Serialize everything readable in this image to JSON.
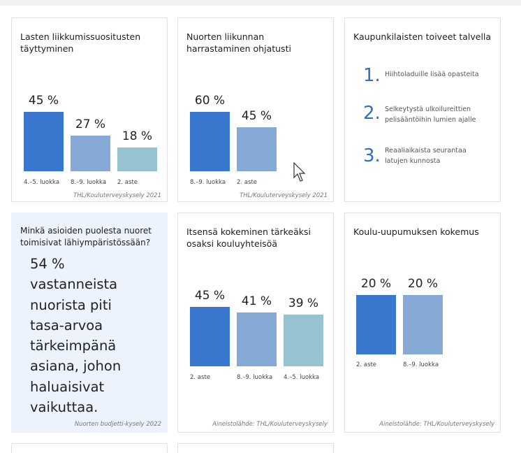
{
  "cards": [
    {
      "title": "Lasten liikkumissuositusten täyttyminen",
      "source": "THL/Kouluterveyskysely 2021",
      "chart_data": {
        "type": "bar",
        "categories": [
          "4.–5. luokka",
          "8.–9. luokka",
          "2. aste"
        ],
        "values": [
          45,
          27,
          18
        ],
        "labels": [
          "45 %",
          "27 %",
          "18 %"
        ],
        "colors": [
          "#3a78cf",
          "#86a9d6",
          "#96c2d2"
        ]
      }
    },
    {
      "title": "Nuorten liikunnan harrastaminen ohjatusti",
      "source": "THL/Kouluterveyskysely 2021",
      "chart_data": {
        "type": "bar",
        "categories": [
          "8.–9. luokka",
          "2. aste"
        ],
        "values": [
          60,
          45
        ],
        "labels": [
          "60 %",
          "45 %"
        ],
        "colors": [
          "#3a78cf",
          "#86a9d6"
        ]
      }
    },
    {
      "title": "Kaupunkilaisten toiveet talvella",
      "items": [
        {
          "num": "1.",
          "text": "Hiihtoladuille lisää opasteita"
        },
        {
          "num": "2.",
          "text": "Selkeytystä ulkoilureittien pelisääntöihin lumien ajalle"
        },
        {
          "num": "3.",
          "text": "Reaaliaikaista seurantaa latujen kunnosta"
        }
      ]
    },
    {
      "title": "Minkä asioiden puolesta nuoret toimisivat lähiympäristössään?",
      "body_lines": [
        "54 %",
        "vastanneista",
        "nuorista piti",
        "tasa-arvoa",
        "tärkeimpänä",
        "asiana, johon",
        "haluaisivat",
        "vaikuttaa."
      ],
      "source": "Nuorten budjetti-kysely 2022"
    },
    {
      "title": "Itsensä kokeminen tärkeäksi osaksi kouluyhteisöä",
      "source": "Aineistolähde: THL/Kouluterveyskysely",
      "chart_data": {
        "type": "bar",
        "categories": [
          "2. aste",
          "8.–9. luokka",
          "4.–5. luokka"
        ],
        "values": [
          45,
          41,
          39
        ],
        "labels": [
          "45 %",
          "41 %",
          "39 %"
        ],
        "colors": [
          "#3a78cf",
          "#86a9d6",
          "#96c2d2"
        ]
      }
    },
    {
      "title": "Koulu-uupumuksen kokemus",
      "source": "Aineistolähde: THL/Kouluterveyskysely",
      "chart_data": {
        "type": "bar",
        "categories": [
          "2. aste",
          "8.–9. luokka"
        ],
        "values": [
          20,
          20
        ],
        "labels": [
          "20 %",
          "20 %"
        ],
        "colors": [
          "#3a78cf",
          "#86a9d6"
        ]
      }
    }
  ]
}
